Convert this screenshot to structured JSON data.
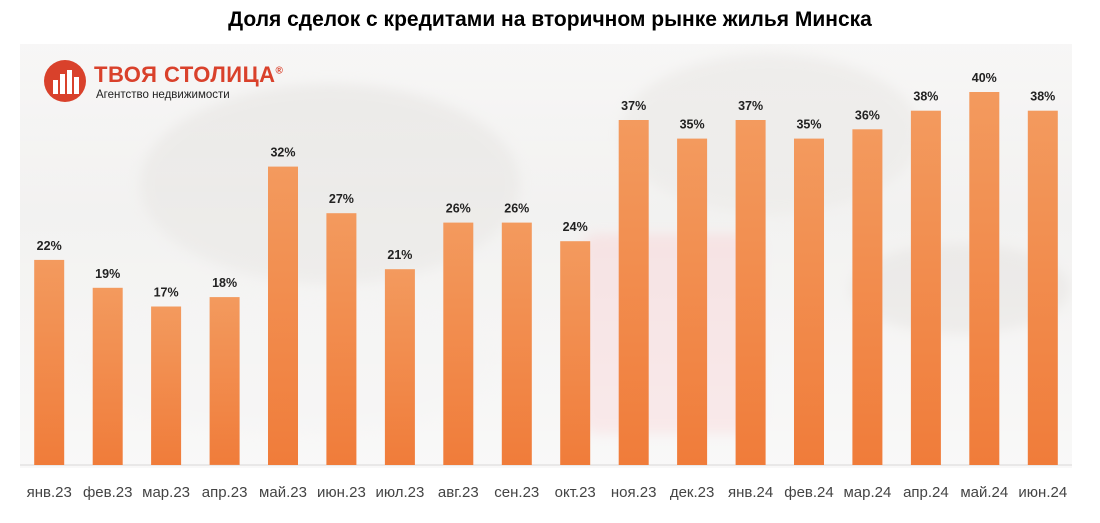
{
  "logo": {
    "name": "ТВОЯ СТОЛИЦА",
    "mark": "®",
    "tagline": "Агентство недвижимости"
  },
  "chart_data": {
    "type": "bar",
    "title": "Доля сделок с кредитами на вторичном рынке жилья Минска",
    "categories": [
      "янв.23",
      "фев.23",
      "мар.23",
      "апр.23",
      "май.23",
      "июн.23",
      "июл.23",
      "авг.23",
      "сен.23",
      "окт.23",
      "ноя.23",
      "дек.23",
      "янв.24",
      "фев.24",
      "мар.24",
      "апр.24",
      "май.24",
      "июн.24"
    ],
    "values": [
      22,
      19,
      17,
      18,
      32,
      27,
      21,
      26,
      26,
      24,
      37,
      35,
      37,
      35,
      36,
      38,
      40,
      38
    ],
    "data_labels": [
      "22%",
      "19%",
      "17%",
      "18%",
      "32%",
      "27%",
      "21%",
      "26%",
      "26%",
      "24%",
      "37%",
      "35%",
      "37%",
      "35%",
      "36%",
      "38%",
      "40%",
      "38%"
    ],
    "value_unit": "%",
    "ylim": [
      0,
      40
    ],
    "grid": false,
    "legend": "none",
    "colors": {
      "bar": "#f07c3a",
      "bar_light": "#f39a5e",
      "label": "#222222",
      "brand": "#d9412b"
    }
  }
}
